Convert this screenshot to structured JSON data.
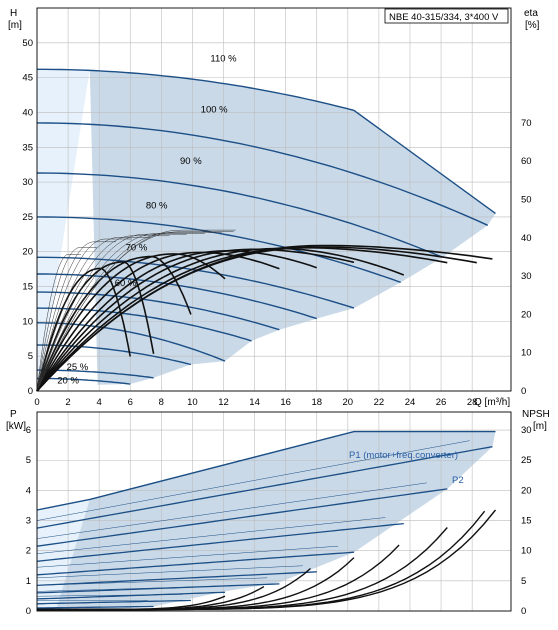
{
  "colors": {
    "envelope_fill": "#c9d9e8",
    "light_fill": "#e6f1fb",
    "curve_blue": "#1c4f86",
    "eff_black": "#111111",
    "grid": "#bdbdbd",
    "axis": "#000000",
    "p1_label": "#2a5fa3"
  },
  "chart_data": [
    {
      "type": "line",
      "panel": "head",
      "title_box": "NBE 40-315/334, 3*400 V",
      "ylabel_left": "H",
      "ylabel_left_unit": "[m]",
      "ylabel_right": "eta",
      "ylabel_right_unit": "[%]",
      "xlabel": "Q [m³/h]",
      "xlim": [
        0,
        30.5
      ],
      "ylim": [
        0,
        55
      ],
      "xticks": [
        0,
        2,
        4,
        6,
        8,
        10,
        12,
        14,
        16,
        18,
        20,
        22,
        24,
        26,
        28
      ],
      "xtick_labels": [
        "0",
        "2",
        "4",
        "6",
        "8",
        "10",
        "12",
        "14",
        "16",
        "18",
        "20",
        "22",
        "24",
        "26",
        "28"
      ],
      "yticks": [
        0,
        5,
        10,
        15,
        20,
        25,
        30,
        35,
        40,
        45,
        50
      ],
      "ytick_labels": [
        "0",
        "5",
        "10",
        "15",
        "20",
        "25",
        "30",
        "35",
        "40",
        "45",
        "50"
      ],
      "eta_lim": [
        0,
        100
      ],
      "eta_ticks": [
        0,
        10,
        20,
        30,
        40,
        50,
        60,
        70
      ],
      "eta_tick_labels": [
        "0",
        "10",
        "20",
        "30",
        "40",
        "50",
        "60",
        "70"
      ],
      "grid": true,
      "series": [
        {
          "name": "110 %",
          "shutoff": 46.2,
          "qmax": 29.5,
          "bend": 20.4,
          "h_bend": 40.3,
          "h_end": 25.5
        },
        {
          "name": "100 %",
          "shutoff": 38.5,
          "qmax": 29.0,
          "h_end": 23.8
        },
        {
          "name": "90 %",
          "shutoff": 31.3,
          "qmax": 26.1,
          "h_end": 19.2
        },
        {
          "name": "80 %",
          "shutoff": 25.0,
          "qmax": 23.4,
          "h_end": 15.6
        },
        {
          "name": "70 %",
          "shutoff": 19.2,
          "qmax": 20.4,
          "h_end": 11.9
        },
        {
          "name": "",
          "shutoff": 16.8,
          "qmax": 18.0,
          "h_end": 10.4
        },
        {
          "name": "60 %",
          "shutoff": 14.2,
          "qmax": 15.6,
          "h_end": 8.8
        },
        {
          "name": "",
          "shutoff": 11.9,
          "qmax": 13.8,
          "h_end": 7.2
        },
        {
          "name": "",
          "shutoff": 9.8,
          "qmax": 12.1,
          "h_end": 4.3
        },
        {
          "name": "",
          "shutoff": 6.6,
          "qmax": 9.9,
          "h_end": 3.8
        },
        {
          "name": "25 %",
          "shutoff": 3.0,
          "qmax": 7.5,
          "h_end": 1.9
        },
        {
          "name": "20 %",
          "shutoff": 1.8,
          "qmax": 6.0,
          "h_end": 1.0
        }
      ],
      "efficiency_curves": [
        {
          "peak_q": 18.6,
          "peak_eta": 38,
          "q_end": 29.3,
          "eta_end": 34.5
        },
        {
          "peak_q": 18.4,
          "peak_eta": 37.6,
          "q_end": 28.3,
          "eta_end": 33.5
        },
        {
          "peak_q": 17.3,
          "peak_eta": 37.4,
          "q_end": 26.4,
          "eta_end": 33.5
        },
        {
          "peak_q": 15.7,
          "peak_eta": 37.2,
          "q_end": 23.6,
          "eta_end": 30.3
        },
        {
          "peak_q": 14.0,
          "peak_eta": 37.0,
          "q_end": 20.4,
          "eta_end": 33.6
        },
        {
          "peak_q": 12.4,
          "peak_eta": 36.6,
          "q_end": 18.0,
          "eta_end": 32.2
        },
        {
          "peak_q": 10.6,
          "peak_eta": 36.2,
          "q_end": 15.6,
          "eta_end": 31.9
        },
        {
          "peak_q": 8.9,
          "peak_eta": 35.8,
          "q_end": 12.1,
          "eta_end": 29.3
        },
        {
          "peak_q": 7.4,
          "peak_eta": 35.1,
          "q_end": 9.9,
          "eta_end": 20.0
        },
        {
          "peak_q": 5.6,
          "peak_eta": 33.7,
          "q_end": 7.5,
          "eta_end": 9.7
        },
        {
          "peak_q": 4.1,
          "peak_eta": 32.0,
          "q_end": 6.0,
          "eta_end": 9.0
        }
      ],
      "annotations": [
        "110 %",
        "100 %",
        "90 %",
        "80 %",
        "70 %",
        "60 %",
        "25 %",
        "20 %"
      ]
    },
    {
      "type": "line",
      "panel": "power_npsh",
      "ylabel_left": "P",
      "ylabel_left_unit": "[kW]",
      "ylabel_right": "NPSH",
      "ylabel_right_unit": "[m]",
      "xlim": [
        0,
        30.5
      ],
      "ylim": [
        0,
        6.6
      ],
      "yticks": [
        0,
        1,
        2,
        3,
        4,
        5,
        6
      ],
      "ytick_labels": [
        "0",
        "1",
        "2",
        "3",
        "4",
        "5",
        "6"
      ],
      "npsh_lim": [
        0,
        33
      ],
      "npsh_ticks": [
        0,
        5,
        10,
        15,
        20,
        25,
        30
      ],
      "npsh_tick_labels": [
        "0",
        "5",
        "10",
        "15",
        "20",
        "25",
        "30"
      ],
      "grid": true,
      "p1_label": "P1 (motor+freq.converter)",
      "p2_label": "P2",
      "p1_series": [
        {
          "p0": 3.35,
          "bend_q": 20.4,
          "p_bend": 5.95,
          "q_end": 29.5,
          "p_end": 5.95
        }
      ],
      "p2_series": [
        {
          "p0": 2.75,
          "q_end": 29.3,
          "p_end": 5.45
        },
        {
          "p0": 2.15,
          "q_end": 26.4,
          "p_end": 4.05
        },
        {
          "p0": 1.65,
          "q_end": 23.6,
          "p_end": 2.9
        },
        {
          "p0": 1.2,
          "q_end": 20.4,
          "p_end": 1.95
        },
        {
          "p0": 0.85,
          "q_end": 18.0,
          "p_end": 1.3
        },
        {
          "p0": 0.6,
          "q_end": 15.6,
          "p_end": 0.9
        },
        {
          "p0": 0.4,
          "q_end": 12.1,
          "p_end": 0.62
        },
        {
          "p0": 0.24,
          "q_end": 9.9,
          "p_end": 0.35
        },
        {
          "p0": 0.1,
          "q_end": 7.5,
          "p_end": 0.15
        }
      ],
      "npsh_curves": [
        {
          "q_end": 29.5,
          "npsh_end": 16.5
        },
        {
          "q_end": 28.8,
          "npsh_end": 16.3
        },
        {
          "q_end": 26.4,
          "npsh_end": 13.6
        },
        {
          "q_end": 23.3,
          "npsh_end": 10.7
        },
        {
          "q_end": 20.4,
          "npsh_end": 8.6
        },
        {
          "q_end": 17.6,
          "npsh_end": 6.8
        },
        {
          "q_end": 14.6,
          "npsh_end": 3.8
        },
        {
          "q_end": 12.1,
          "npsh_end": 2.2
        }
      ]
    }
  ]
}
